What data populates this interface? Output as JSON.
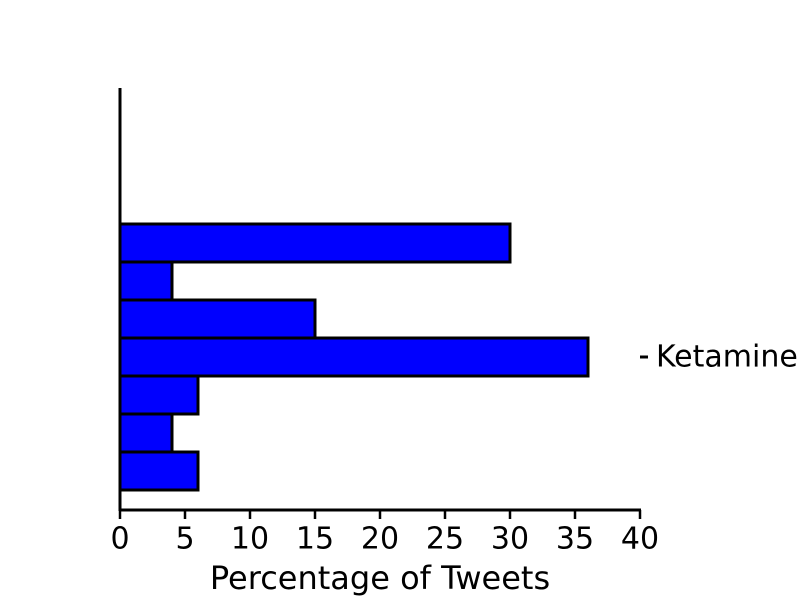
{
  "chart_data": {
    "type": "barh",
    "xlabel": "Percentage of Tweets",
    "annotation": "Ketamine",
    "categories": [
      null,
      null,
      null,
      null,
      null,
      null,
      null
    ],
    "values": [
      30,
      4,
      15,
      36,
      6,
      4,
      6
    ],
    "color": "#0000ff",
    "xlim": [
      0,
      40
    ],
    "xticks": [
      0,
      5,
      10,
      15,
      20,
      25,
      30,
      35,
      40
    ],
    "grid": false
  }
}
